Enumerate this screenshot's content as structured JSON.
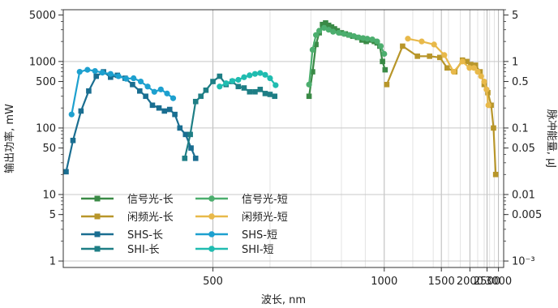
{
  "chart_data": {
    "type": "line",
    "xlabel": "波长, nm",
    "ylabel_left": "输出功率, mW",
    "ylabel_right": "脉冲能量, μJ",
    "x_scale": "reciprocal",
    "y_scale": "log",
    "xlim": [
      348,
      3300
    ],
    "ylim_left": [
      0.8,
      6000
    ],
    "right_axis_factor": 0.001,
    "grid": true,
    "legend_position": "lower-left",
    "x_ticks": [
      {
        "value": 500,
        "label": "500"
      },
      {
        "value": 1000,
        "label": "1000"
      },
      {
        "value": 1500,
        "label": "1500"
      },
      {
        "value": 2000,
        "label": "2000"
      },
      {
        "value": 2500,
        "label": "2500"
      },
      {
        "value": 3000,
        "label": "3000"
      }
    ],
    "y_ticks_left": [
      {
        "value": 1,
        "label": "1"
      },
      {
        "value": 5,
        "label": "5"
      },
      {
        "value": 10,
        "label": "10"
      },
      {
        "value": 50,
        "label": "50"
      },
      {
        "value": 100,
        "label": "100"
      },
      {
        "value": 500,
        "label": "500"
      },
      {
        "value": 1000,
        "label": "1000"
      },
      {
        "value": 5000,
        "label": "5000"
      }
    ],
    "y_ticks_right": [
      {
        "value": 1,
        "label": "10⁻³"
      },
      {
        "value": 5,
        "label": "0.005"
      },
      {
        "value": 10,
        "label": "0.01"
      },
      {
        "value": 50,
        "label": "0.05"
      },
      {
        "value": 100,
        "label": "0.1"
      },
      {
        "value": 500,
        "label": "0.5"
      },
      {
        "value": 1000,
        "label": "1"
      },
      {
        "value": 5000,
        "label": "5"
      }
    ],
    "x_minor_gridlines": [
      600,
      700,
      800,
      900,
      1200,
      1400,
      1600,
      1800,
      2200,
      2400,
      2600,
      2800
    ],
    "series": [
      {
        "name": "信号光-长",
        "color": "#3a8a46",
        "marker": "square",
        "legend_col": 0,
        "legend_row": 0,
        "x": [
          695,
          705,
          715,
          725,
          735,
          745,
          755,
          765,
          775,
          785,
          800,
          815,
          830,
          845,
          865,
          885,
          905,
          925,
          945,
          960,
          975,
          990,
          1005
        ],
        "y": [
          300,
          700,
          1800,
          2700,
          3600,
          3800,
          3500,
          3300,
          3100,
          2900,
          2700,
          2600,
          2500,
          2400,
          2300,
          2100,
          2000,
          2100,
          2000,
          1900,
          1700,
          1000,
          750
        ]
      },
      {
        "name": "信号光-短",
        "color": "#4cae6e",
        "marker": "circle",
        "legend_col": 1,
        "legend_row": 0,
        "x": [
          695,
          705,
          715,
          725,
          740,
          755,
          770,
          790,
          810,
          830,
          850,
          870,
          890,
          910,
          935,
          960,
          980,
          1000
        ],
        "y": [
          450,
          1500,
          2500,
          2900,
          3200,
          3000,
          2800,
          2700,
          2600,
          2500,
          2400,
          2300,
          2250,
          2200,
          2150,
          2000,
          1700,
          1300
        ]
      },
      {
        "name": "闲频光-长",
        "color": "#b8962a",
        "marker": "square",
        "legend_col": 0,
        "legend_row": 1,
        "x": [
          1015,
          1120,
          1240,
          1360,
          1480,
          1580,
          1700,
          1840,
          1930,
          2020,
          2140,
          2270,
          2400,
          2530,
          2660,
          2760,
          2860
        ],
        "y": [
          450,
          1700,
          1200,
          1200,
          1150,
          800,
          700,
          1050,
          1000,
          900,
          880,
          700,
          450,
          340,
          220,
          100,
          20
        ]
      },
      {
        "name": "闲频光-短",
        "color": "#e8b94a",
        "marker": "circle",
        "legend_col": 1,
        "legend_row": 1,
        "x": [
          1160,
          1280,
          1410,
          1540,
          1680,
          1840,
          1990,
          2100,
          2200,
          2300,
          2400,
          2480,
          2550
        ],
        "y": [
          2200,
          2000,
          1800,
          1250,
          700,
          1000,
          800,
          800,
          700,
          600,
          500,
          380,
          220
        ]
      },
      {
        "name": "SHS-长",
        "color": "#1a6e91",
        "marker": "square",
        "legend_col": 0,
        "legend_row": 2,
        "x": [
          350,
          355,
          361,
          367,
          373,
          379,
          385,
          391,
          398,
          405,
          412,
          418,
          425,
          432,
          438,
          444,
          450,
          456,
          463,
          470,
          476
        ],
        "y": [
          22,
          65,
          180,
          360,
          600,
          700,
          580,
          620,
          560,
          450,
          360,
          300,
          220,
          200,
          180,
          190,
          160,
          100,
          80,
          50,
          35
        ]
      },
      {
        "name": "SHS-短",
        "color": "#1da0cf",
        "marker": "circle",
        "legend_col": 1,
        "legend_row": 2,
        "x": [
          354,
          360,
          366,
          372,
          378,
          385,
          392,
          399,
          406,
          413,
          420,
          427,
          434,
          441,
          448
        ],
        "y": [
          160,
          700,
          750,
          720,
          680,
          650,
          600,
          550,
          560,
          500,
          420,
          350,
          380,
          330,
          280
        ]
      },
      {
        "name": "SHI-长",
        "color": "#1e7e85",
        "marker": "square",
        "legend_col": 0,
        "legend_row": 3,
        "x": [
          462,
          469,
          476,
          483,
          490,
          500,
          510,
          520,
          530,
          540,
          550,
          560,
          570,
          580,
          590,
          600,
          610
        ],
        "y": [
          35,
          80,
          250,
          300,
          370,
          500,
          600,
          450,
          500,
          420,
          400,
          350,
          350,
          380,
          330,
          320,
          300
        ]
      },
      {
        "name": "SHI-短",
        "color": "#20bcb0",
        "marker": "circle",
        "legend_col": 1,
        "legend_row": 3,
        "x": [
          510,
          520,
          530,
          540,
          550,
          560,
          570,
          580,
          590,
          600,
          612
        ],
        "y": [
          420,
          470,
          510,
          530,
          580,
          620,
          650,
          670,
          630,
          560,
          440
        ]
      }
    ]
  }
}
